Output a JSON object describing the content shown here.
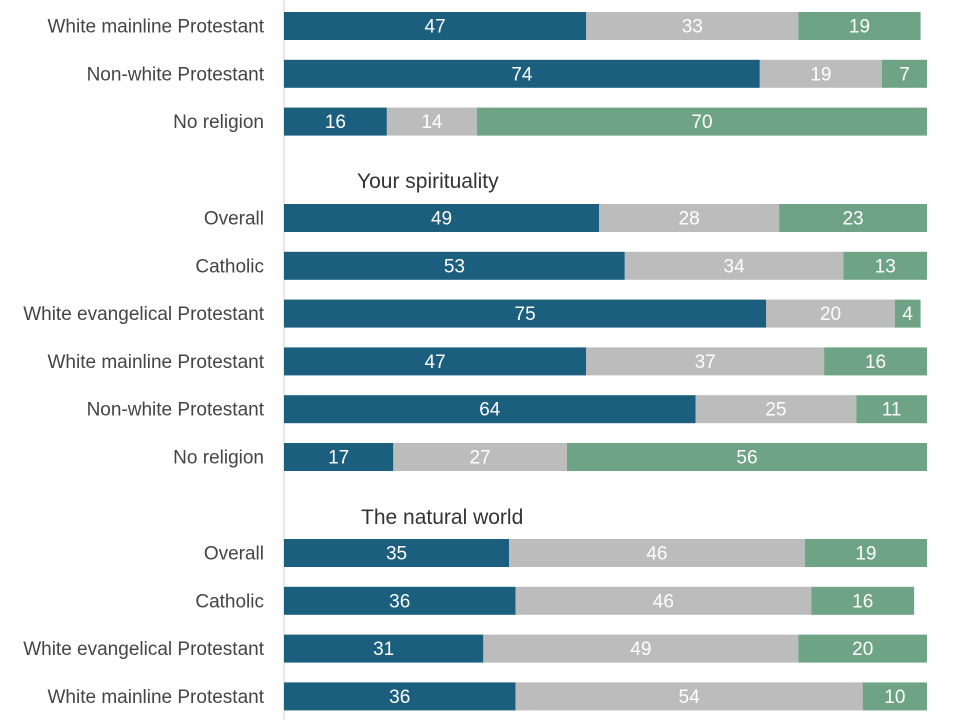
{
  "chart_data": {
    "type": "bar",
    "orientation": "horizontal",
    "stacked": true,
    "scale": [
      0,
      100
    ],
    "grid": false,
    "legend": "none",
    "colors": [
      "#1b5e7e",
      "#bcbcbc",
      "#6fa386"
    ],
    "groups": [
      {
        "title": "",
        "rows": [
          {
            "label": "White mainline Protestant",
            "values": [
              47,
              33,
              19
            ]
          },
          {
            "label": "Non-white Protestant",
            "values": [
              74,
              19,
              7
            ]
          },
          {
            "label": "No religion",
            "values": [
              16,
              14,
              70
            ]
          }
        ]
      },
      {
        "title": "Your spirituality",
        "rows": [
          {
            "label": "Overall",
            "values": [
              49,
              28,
              23
            ]
          },
          {
            "label": "Catholic",
            "values": [
              53,
              34,
              13
            ]
          },
          {
            "label": "White evangelical Protestant",
            "values": [
              75,
              20,
              4
            ]
          },
          {
            "label": "White mainline Protestant",
            "values": [
              47,
              37,
              16
            ]
          },
          {
            "label": "Non-white Protestant",
            "values": [
              64,
              25,
              11
            ]
          },
          {
            "label": "No religion",
            "values": [
              17,
              27,
              56
            ]
          }
        ]
      },
      {
        "title": "The natural world",
        "rows": [
          {
            "label": "Overall",
            "values": [
              35,
              46,
              19
            ]
          },
          {
            "label": "Catholic",
            "values": [
              36,
              46,
              16
            ]
          },
          {
            "label": "White evangelical Protestant",
            "values": [
              31,
              49,
              20
            ]
          },
          {
            "label": "White mainline Protestant",
            "values": [
              36,
              54,
              10
            ]
          }
        ]
      }
    ]
  }
}
